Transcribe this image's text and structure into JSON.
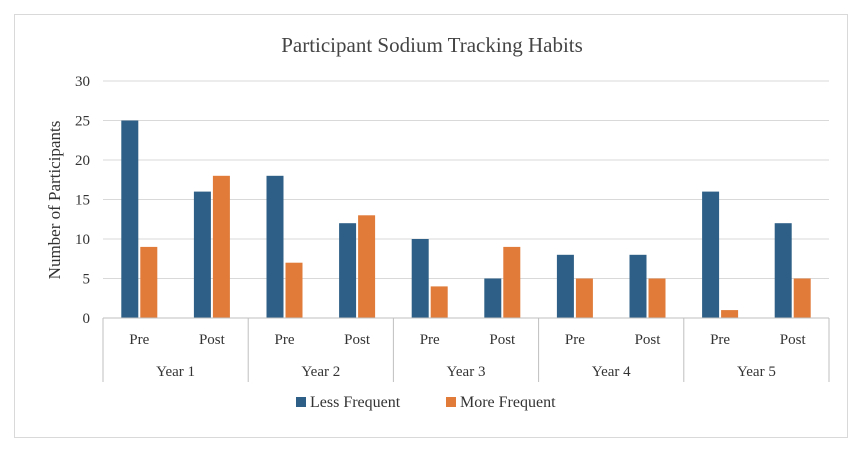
{
  "chart_data": {
    "type": "bar",
    "title": "Participant Sodium Tracking Habits",
    "ylabel": "Number of Participants",
    "xlabel": "",
    "ylim": [
      0,
      30
    ],
    "yticks": [
      0,
      5,
      10,
      15,
      20,
      25,
      30
    ],
    "groups": [
      {
        "label": "Year 1",
        "subcategories": [
          "Pre",
          "Post"
        ]
      },
      {
        "label": "Year 2",
        "subcategories": [
          "Pre",
          "Post"
        ]
      },
      {
        "label": "Year 3",
        "subcategories": [
          "Pre",
          "Post"
        ]
      },
      {
        "label": "Year 4",
        "subcategories": [
          "Pre",
          "Post"
        ]
      },
      {
        "label": "Year 5",
        "subcategories": [
          "Pre",
          "Post"
        ]
      }
    ],
    "series": [
      {
        "name": "Less Frequent",
        "color": "#2e5f86",
        "values": [
          25,
          16,
          18,
          12,
          10,
          5,
          8,
          8,
          16,
          12
        ]
      },
      {
        "name": "More Frequent",
        "color": "#e07b39",
        "values": [
          9,
          18,
          7,
          13,
          4,
          9,
          5,
          5,
          1,
          5
        ]
      }
    ],
    "grid": true,
    "legend_position": "bottom"
  }
}
